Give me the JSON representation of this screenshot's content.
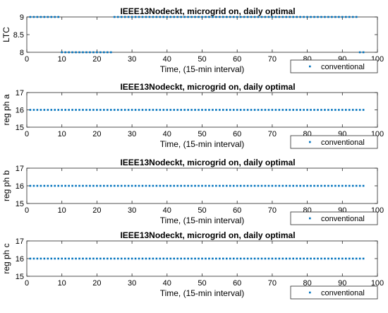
{
  "chart_data": [
    {
      "type": "scatter",
      "title": "IEEE13Nodeckt, microgrid on, daily optimal",
      "xlabel": "Time, (15-min interval)",
      "ylabel": "LTC",
      "xlim": [
        0,
        100
      ],
      "ylim": [
        8,
        9
      ],
      "xticks": [
        "0",
        "10",
        "20",
        "30",
        "40",
        "50",
        "60",
        "70",
        "80",
        "90",
        "100"
      ],
      "yticks": [
        "8",
        "8.5",
        "9"
      ],
      "legend_position": "below-right",
      "color": "#0072BD",
      "series": [
        {
          "name": "conventional",
          "points": [
            [
              1,
              9
            ],
            [
              2,
              9
            ],
            [
              3,
              9
            ],
            [
              4,
              9
            ],
            [
              5,
              9
            ],
            [
              6,
              9
            ],
            [
              7,
              9
            ],
            [
              8,
              9
            ],
            [
              9,
              9
            ],
            [
              10,
              8
            ],
            [
              11,
              8
            ],
            [
              12,
              8
            ],
            [
              13,
              8
            ],
            [
              14,
              8
            ],
            [
              15,
              8
            ],
            [
              16,
              8
            ],
            [
              17,
              8
            ],
            [
              18,
              8
            ],
            [
              19,
              8
            ],
            [
              20,
              8
            ],
            [
              21,
              8
            ],
            [
              22,
              8
            ],
            [
              23,
              8
            ],
            [
              24,
              8
            ],
            [
              25,
              9
            ],
            [
              26,
              9
            ],
            [
              27,
              9
            ],
            [
              28,
              9
            ],
            [
              29,
              9
            ],
            [
              30,
              9
            ],
            [
              31,
              9
            ],
            [
              32,
              9
            ],
            [
              33,
              9
            ],
            [
              34,
              9
            ],
            [
              35,
              9
            ],
            [
              36,
              9
            ],
            [
              37,
              9
            ],
            [
              38,
              9
            ],
            [
              39,
              9
            ],
            [
              40,
              9
            ],
            [
              41,
              9
            ],
            [
              42,
              9
            ],
            [
              43,
              9
            ],
            [
              44,
              9
            ],
            [
              45,
              9
            ],
            [
              46,
              9
            ],
            [
              47,
              9
            ],
            [
              48,
              9
            ],
            [
              49,
              9
            ],
            [
              50,
              9
            ],
            [
              51,
              9
            ],
            [
              52,
              9
            ],
            [
              53,
              9
            ],
            [
              54,
              9
            ],
            [
              55,
              9
            ],
            [
              56,
              9
            ],
            [
              57,
              9
            ],
            [
              58,
              9
            ],
            [
              59,
              9
            ],
            [
              60,
              9
            ],
            [
              61,
              9
            ],
            [
              62,
              9
            ],
            [
              63,
              9
            ],
            [
              64,
              9
            ],
            [
              65,
              9
            ],
            [
              66,
              9
            ],
            [
              67,
              9
            ],
            [
              68,
              9
            ],
            [
              69,
              9
            ],
            [
              70,
              9
            ],
            [
              71,
              9
            ],
            [
              72,
              9
            ],
            [
              73,
              9
            ],
            [
              74,
              9
            ],
            [
              75,
              9
            ],
            [
              76,
              9
            ],
            [
              77,
              9
            ],
            [
              78,
              9
            ],
            [
              79,
              9
            ],
            [
              80,
              9
            ],
            [
              81,
              9
            ],
            [
              82,
              9
            ],
            [
              83,
              9
            ],
            [
              84,
              9
            ],
            [
              85,
              9
            ],
            [
              86,
              9
            ],
            [
              87,
              9
            ],
            [
              88,
              9
            ],
            [
              89,
              9
            ],
            [
              90,
              9
            ],
            [
              91,
              9
            ],
            [
              92,
              9
            ],
            [
              93,
              9
            ],
            [
              94,
              9
            ],
            [
              95,
              8
            ],
            [
              96,
              8
            ]
          ]
        }
      ]
    },
    {
      "type": "scatter",
      "title": "IEEE13Nodeckt, microgrid on, daily optimal",
      "xlabel": "Time, (15-min interval)",
      "ylabel": "reg ph a",
      "xlim": [
        0,
        100
      ],
      "ylim": [
        15,
        17
      ],
      "xticks": [
        "0",
        "10",
        "20",
        "30",
        "40",
        "50",
        "60",
        "70",
        "80",
        "90",
        "100"
      ],
      "yticks": [
        "15",
        "16",
        "17"
      ],
      "legend_position": "below-right",
      "color": "#0072BD",
      "series": [
        {
          "name": "conventional",
          "x_range": [
            1,
            96
          ],
          "y": 16
        }
      ]
    },
    {
      "type": "scatter",
      "title": "IEEE13Nodeckt, microgrid on, daily optimal",
      "xlabel": "Time, (15-min interval)",
      "ylabel": "reg ph b",
      "xlim": [
        0,
        100
      ],
      "ylim": [
        15,
        17
      ],
      "xticks": [
        "0",
        "10",
        "20",
        "30",
        "40",
        "50",
        "60",
        "70",
        "80",
        "90",
        "100"
      ],
      "yticks": [
        "15",
        "16",
        "17"
      ],
      "legend_position": "below-right",
      "color": "#0072BD",
      "series": [
        {
          "name": "conventional",
          "x_range": [
            1,
            96
          ],
          "y": 16
        }
      ]
    },
    {
      "type": "scatter",
      "title": "IEEE13Nodeckt, microgrid on, daily optimal",
      "xlabel": "Time, (15-min interval)",
      "ylabel": "reg ph c",
      "xlim": [
        0,
        100
      ],
      "ylim": [
        15,
        17
      ],
      "xticks": [
        "0",
        "10",
        "20",
        "30",
        "40",
        "50",
        "60",
        "70",
        "80",
        "90",
        "100"
      ],
      "yticks": [
        "15",
        "16",
        "17"
      ],
      "legend_position": "below-right",
      "color": "#0072BD",
      "series": [
        {
          "name": "conventional",
          "x_range": [
            1,
            96
          ],
          "y": 16
        }
      ]
    }
  ]
}
